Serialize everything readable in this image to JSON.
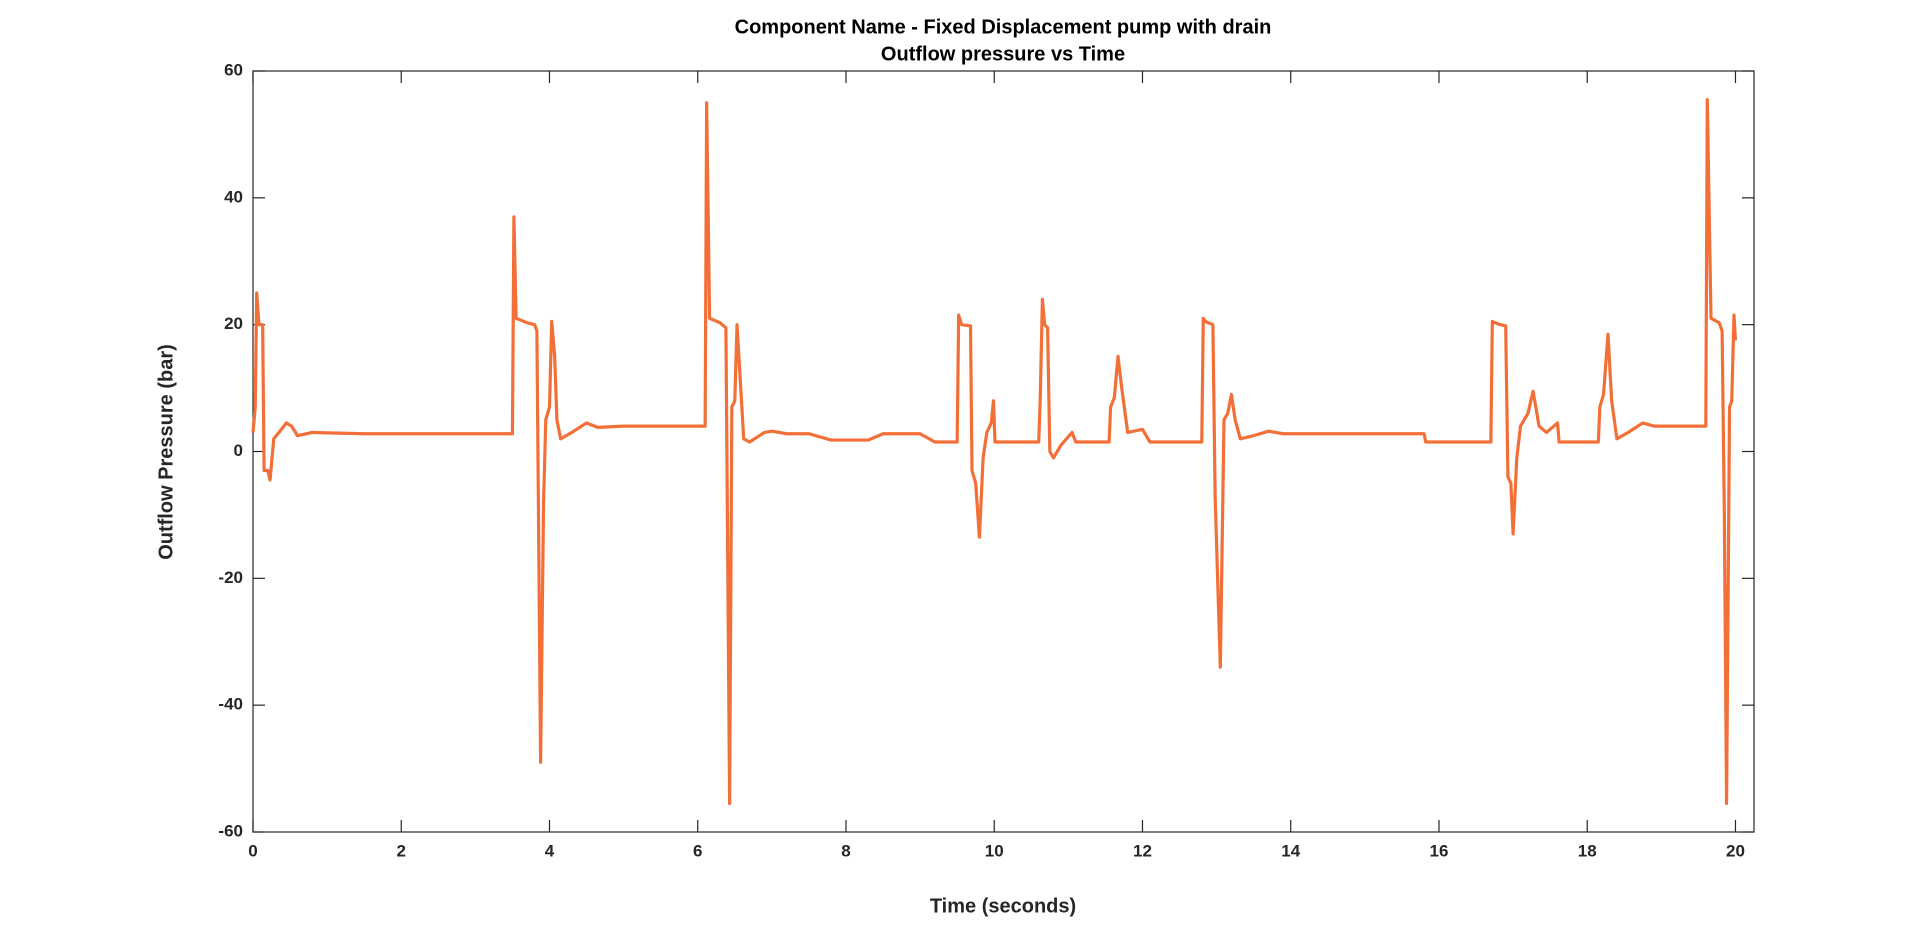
{
  "chart_data": {
    "type": "line",
    "title": "Component Name - Fixed Displacement pump with drain",
    "subtitle": "Outflow pressure vs Time",
    "x_label": "Time (seconds)",
    "y_label": "Outflow Pressure (bar)",
    "xlim": [
      0,
      20.25
    ],
    "ylim": [
      -60,
      60
    ],
    "xticks": [
      0,
      2,
      4,
      6,
      8,
      10,
      12,
      14,
      16,
      18,
      20
    ],
    "yticks": [
      -60,
      -40,
      -20,
      0,
      20,
      40,
      60
    ],
    "grid": false,
    "box": true,
    "x": [
      0,
      0.03,
      0.05,
      0.08,
      0.13,
      0.15,
      0.2,
      0.23,
      0.28,
      0.35,
      0.45,
      0.52,
      0.6,
      0.8,
      1.5,
      3.5,
      3.52,
      3.55,
      3.7,
      3.8,
      3.83,
      3.85,
      3.88,
      3.92,
      3.95,
      4.0,
      4.03,
      4.07,
      4.1,
      4.15,
      4.3,
      4.5,
      4.65,
      5.0,
      6.1,
      6.12,
      6.16,
      6.3,
      6.38,
      6.4,
      6.43,
      6.46,
      6.5,
      6.53,
      6.57,
      6.62,
      6.7,
      6.9,
      7.0,
      7.2,
      7.5,
      7.8,
      8.3,
      8.5,
      9.0,
      9.2,
      9.5,
      9.52,
      9.56,
      9.68,
      9.7,
      9.75,
      9.8,
      9.85,
      9.9,
      9.96,
      9.99,
      10.01,
      10.6,
      10.62,
      10.65,
      10.68,
      10.72,
      10.75,
      10.8,
      10.9,
      11.05,
      11.1,
      11.55,
      11.57,
      11.62,
      11.67,
      11.72,
      11.8,
      12.0,
      12.1,
      12.8,
      12.82,
      12.85,
      12.95,
      12.98,
      13.05,
      13.1,
      13.15,
      13.2,
      13.25,
      13.32,
      13.5,
      13.7,
      13.9,
      15.8,
      15.82,
      16.7,
      16.72,
      16.8,
      16.9,
      16.93,
      16.97,
      17.0,
      17.05,
      17.1,
      17.2,
      17.27,
      17.35,
      17.45,
      17.6,
      17.62,
      18.15,
      18.17,
      18.22,
      18.28,
      18.33,
      18.4,
      18.55,
      18.75,
      18.9,
      19.3,
      19.6,
      19.62,
      19.67,
      19.78,
      19.82,
      19.85,
      19.88,
      19.92,
      19.95,
      19.98,
      20.0
    ],
    "series": [
      {
        "name": "Outflow pressure",
        "color": "#f36f38",
        "values": [
          3,
          7,
          25,
          20,
          20,
          -3,
          -3,
          -4.5,
          2,
          3,
          4.5,
          4,
          2.5,
          3,
          2.8,
          2.8,
          37,
          21,
          20.3,
          20,
          19,
          -8,
          -49,
          -8,
          5,
          7,
          20.5,
          15,
          5,
          2,
          3,
          4.5,
          3.8,
          4,
          4,
          55,
          21,
          20.3,
          19.5,
          -10,
          -55.5,
          7,
          8,
          20,
          12,
          2,
          1.5,
          3,
          3.2,
          2.8,
          2.8,
          1.8,
          1.8,
          2.8,
          2.8,
          1.5,
          1.5,
          21.5,
          20,
          19.8,
          -3,
          -5,
          -13.5,
          -1,
          3,
          4.5,
          8,
          1.5,
          1.5,
          8,
          24,
          20,
          19.5,
          0,
          -1,
          1,
          3,
          1.5,
          1.5,
          7,
          8.5,
          15,
          10,
          3,
          3.5,
          1.5,
          1.5,
          21,
          20.5,
          20,
          -7,
          -34,
          5,
          6,
          9,
          5,
          2,
          2.5,
          3.2,
          2.8,
          2.8,
          1.5,
          1.5,
          20.5,
          20.1,
          19.8,
          -4,
          -5,
          -13,
          -1,
          4,
          6,
          9.5,
          4,
          3,
          4.5,
          1.5,
          1.5,
          7,
          9,
          18.5,
          8,
          2,
          3,
          4.5,
          4,
          4,
          4,
          55.5,
          21,
          20.3,
          19,
          -10,
          -55.5,
          7,
          8,
          21.5,
          17.5
        ]
      }
    ]
  }
}
